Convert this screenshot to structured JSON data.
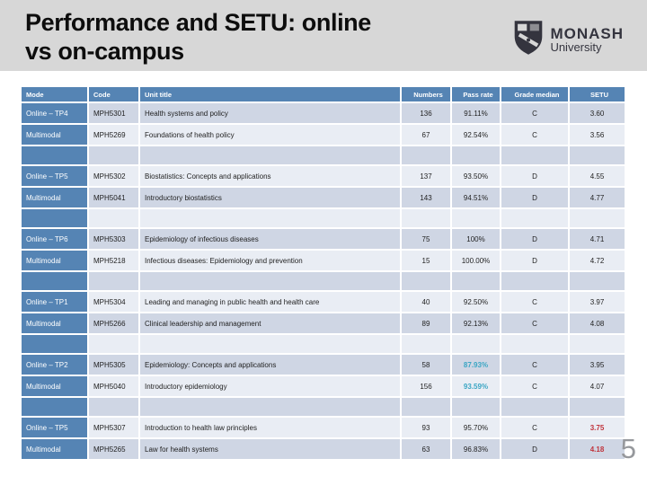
{
  "slide": {
    "title_line1": "Performance and SETU: online",
    "title_line2": "vs on-campus",
    "page_number": "5"
  },
  "logo": {
    "name": "MONASH",
    "subtitle": "University"
  },
  "table": {
    "columns": [
      "Mode",
      "Code",
      "Unit title",
      "Numbers",
      "Pass rate",
      "Grade median",
      "SETU"
    ],
    "rows": [
      {
        "mode": "Online – TP4",
        "code": "MPH5301",
        "title": "Health systems and policy",
        "numbers": "136",
        "pass_rate": "91.11%",
        "grade_median": "C",
        "setu": "3.60"
      },
      {
        "mode": "Multimodal",
        "code": "MPH5269",
        "title": "Foundations of health policy",
        "numbers": "67",
        "pass_rate": "92.54%",
        "grade_median": "C",
        "setu": "3.56"
      },
      {
        "spacer": true
      },
      {
        "mode": "Online – TP5",
        "code": "MPH5302",
        "title": "Biostatistics: Concepts and applications",
        "numbers": "137",
        "pass_rate": "93.50%",
        "grade_median": "D",
        "setu": "4.55"
      },
      {
        "mode": "Multimodal",
        "code": "MPH5041",
        "title": "Introductory biostatistics",
        "numbers": "143",
        "pass_rate": "94.51%",
        "grade_median": "D",
        "setu": "4.77"
      },
      {
        "spacer": true
      },
      {
        "mode": "Online – TP6",
        "code": "MPH5303",
        "title": "Epidemiology of infectious diseases",
        "numbers": "75",
        "pass_rate": "100%",
        "grade_median": "D",
        "setu": "4.71"
      },
      {
        "mode": "Multimodal",
        "code": "MPH5218",
        "title": "Infectious diseases: Epidemiology and prevention",
        "numbers": "15",
        "pass_rate": "100.00%",
        "grade_median": "D",
        "setu": "4.72"
      },
      {
        "spacer": true
      },
      {
        "mode": "Online – TP1",
        "code": "MPH5304",
        "title": "Leading and managing in public health and health care",
        "numbers": "40",
        "pass_rate": "92.50%",
        "grade_median": "C",
        "setu": "3.97"
      },
      {
        "mode": "Multimodal",
        "code": "MPH5266",
        "title": "Clinical leadership and management",
        "numbers": "89",
        "pass_rate": "92.13%",
        "grade_median": "C",
        "setu": "4.08"
      },
      {
        "spacer": true
      },
      {
        "mode": "Online – TP2",
        "code": "MPH5305",
        "title": "Epidemiology: Concepts and applications",
        "numbers": "58",
        "pass_rate": "87.93%",
        "pass_rate_color": "teal",
        "grade_median": "C",
        "setu": "3.95"
      },
      {
        "mode": "Multimodal",
        "code": "MPH5040",
        "title": "Introductory epidemiology",
        "numbers": "156",
        "pass_rate": "93.59%",
        "pass_rate_color": "teal",
        "grade_median": "C",
        "setu": "4.07"
      },
      {
        "spacer": true
      },
      {
        "mode": "Online – TP5",
        "code": "MPH5307",
        "title": "Introduction to health law principles",
        "numbers": "93",
        "pass_rate": "95.70%",
        "grade_median": "C",
        "setu": "3.75",
        "setu_color": "red"
      },
      {
        "mode": "Multimodal",
        "code": "MPH5265",
        "title": "Law for health systems",
        "numbers": "63",
        "pass_rate": "96.83%",
        "grade_median": "D",
        "setu": "4.18",
        "setu_color": "red"
      }
    ]
  },
  "colors": {
    "title_band_gray": "#d7d7d7",
    "header_blue": "#5584b4",
    "band_dark": "#cfd6e4",
    "band_light": "#e9edf4",
    "highlight_teal": "#3ba6c4",
    "highlight_red": "#c0343c"
  }
}
